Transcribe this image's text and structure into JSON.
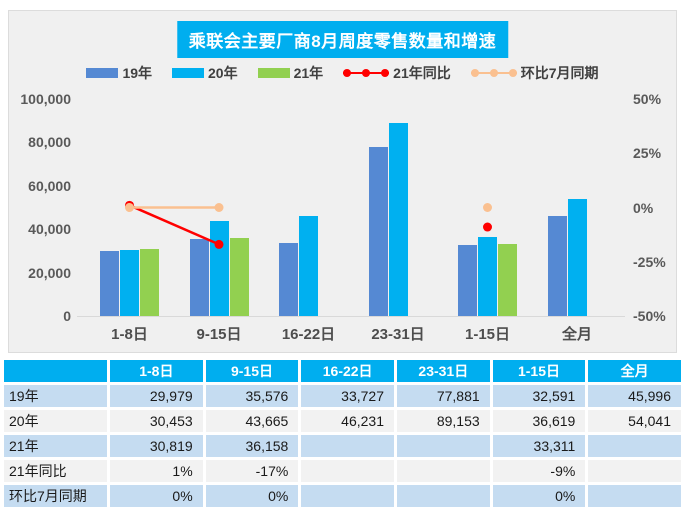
{
  "chart_data": {
    "type": "bar",
    "title": "乘联会主要厂商8月周度零售数量和增速",
    "categories": [
      "1-8日",
      "9-15日",
      "16-22日",
      "23-31日",
      "1-15日",
      "全月"
    ],
    "series": [
      {
        "name": "19年",
        "kind": "bar",
        "color": "#5589D3",
        "values": [
          29979,
          35576,
          33727,
          77881,
          32591,
          45996
        ]
      },
      {
        "name": "20年",
        "kind": "bar",
        "color": "#00B0F0",
        "values": [
          30453,
          43665,
          46231,
          89153,
          36619,
          54041
        ]
      },
      {
        "name": "21年",
        "kind": "bar",
        "color": "#92D050",
        "values": [
          30819,
          36158,
          null,
          null,
          33311,
          null
        ]
      },
      {
        "name": "21年同比",
        "kind": "line",
        "axis": "right",
        "color": "#FF0000",
        "values": [
          1,
          -17,
          null,
          null,
          -9,
          null
        ]
      },
      {
        "name": "环比7月同期",
        "kind": "line",
        "axis": "right",
        "color": "#FAC090",
        "values": [
          0,
          0,
          null,
          null,
          0,
          null
        ]
      }
    ],
    "left_axis": {
      "min": 0,
      "max": 100000,
      "ticks": [
        "100,000",
        "80,000",
        "60,000",
        "40,000",
        "20,000",
        "0"
      ]
    },
    "right_axis": {
      "min": -50,
      "max": 50,
      "ticks": [
        "50%",
        "25%",
        "0%",
        "-25%",
        "-50%"
      ]
    },
    "legend_position": "top",
    "grid": false
  },
  "table": {
    "headers": [
      "",
      "1-8日",
      "9-15日",
      "16-22日",
      "23-31日",
      "1-15日",
      "全月"
    ],
    "rows": [
      {
        "label": "19年",
        "cells": [
          "29,979",
          "35,576",
          "33,727",
          "77,881",
          "32,591",
          "45,996"
        ]
      },
      {
        "label": "20年",
        "cells": [
          "30,453",
          "43,665",
          "46,231",
          "89,153",
          "36,619",
          "54,041"
        ]
      },
      {
        "label": "21年",
        "cells": [
          "30,819",
          "36,158",
          "",
          "",
          "33,311",
          ""
        ]
      },
      {
        "label": "21年同比",
        "cells": [
          "1%",
          "-17%",
          "",
          "",
          "-9%",
          ""
        ]
      },
      {
        "label": "环比7月同期",
        "cells": [
          "0%",
          "0%",
          "",
          "",
          "0%",
          ""
        ]
      }
    ]
  },
  "colors": {
    "accent_blue": "#00AEEF",
    "bar_19": "#5589D3",
    "bar_20": "#00B0F0",
    "bar_21": "#92D050",
    "line_red": "#FF0000",
    "line_orange": "#FAC090",
    "panel_bg": "#F0F0F0",
    "row_blue": "#C5DCF1",
    "row_gray": "#F2F2F2",
    "axis_text": "#595959"
  }
}
